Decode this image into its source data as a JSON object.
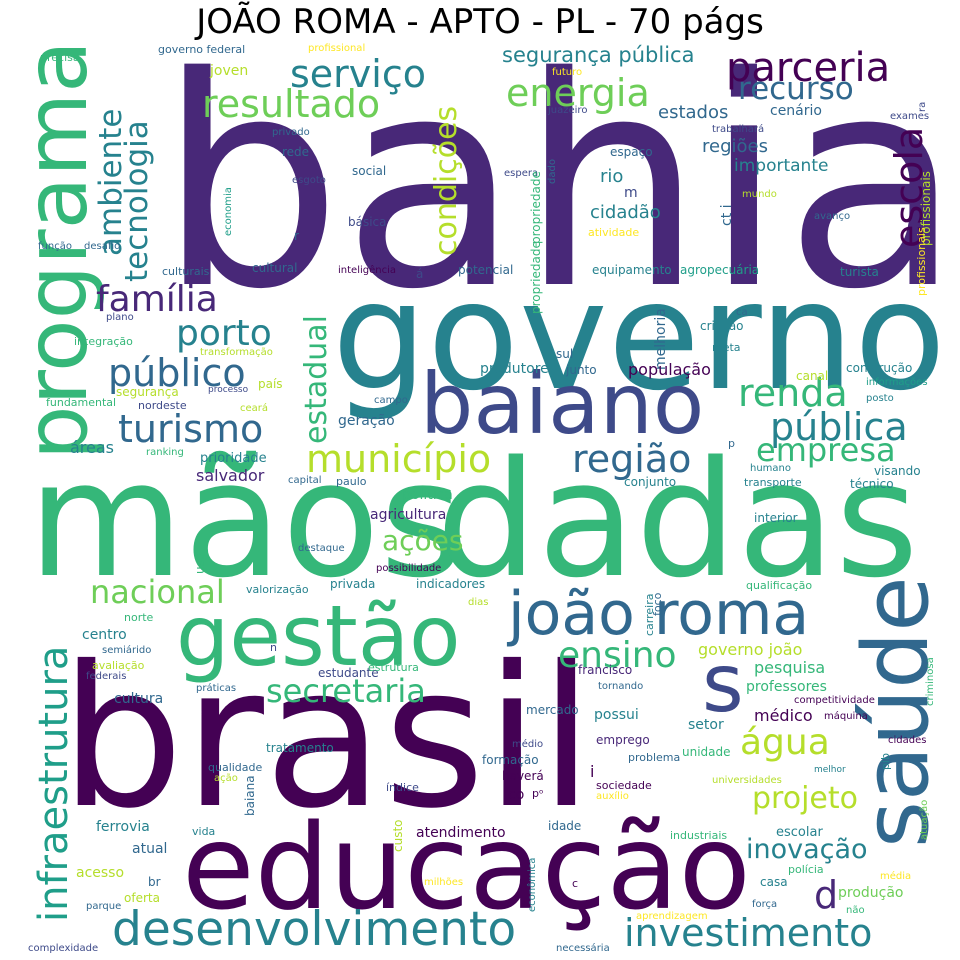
{
  "title": "JOÃO ROMA - APTO - PL - 70 págs",
  "palette": {
    "dark_purple": "#440154",
    "indigo": "#482878",
    "blue": "#3e4a89",
    "slate": "#31688e",
    "teal": "#26828e",
    "sea": "#1f9e89",
    "green": "#35b779",
    "lime": "#6ece58",
    "yellow_green": "#b5de2b",
    "yellow": "#fde725"
  },
  "words": [
    {
      "text": "bahia",
      "color": "#482878"
    },
    {
      "text": "governo",
      "color": "#26828e"
    },
    {
      "text": "mãos",
      "color": "#35b779"
    },
    {
      "text": "dadas",
      "color": "#35b779"
    },
    {
      "text": "brasil",
      "color": "#440154"
    },
    {
      "text": "educação",
      "color": "#440154"
    },
    {
      "text": "programa",
      "color": "#35b779"
    },
    {
      "text": "saúde",
      "color": "#31688e"
    },
    {
      "text": "gestão",
      "color": "#35b779"
    },
    {
      "text": "joão roma",
      "color": "#31688e"
    },
    {
      "text": "baiano",
      "color": "#3e4a89"
    },
    {
      "text": "s",
      "color": "#3e4a89"
    },
    {
      "text": "desenvolvimento",
      "color": "#26828e"
    },
    {
      "text": "infraestrutura",
      "color": "#1f9e89"
    },
    {
      "text": "parceria",
      "color": "#440154"
    },
    {
      "text": "serviço",
      "color": "#26828e"
    },
    {
      "text": "resultado",
      "color": "#6ece58"
    },
    {
      "text": "energia",
      "color": "#6ece58"
    },
    {
      "text": "recurso",
      "color": "#31688e"
    },
    {
      "text": "segurança pública",
      "color": "#26828e"
    },
    {
      "text": "ambiente",
      "color": "#26828e"
    },
    {
      "text": "tecnologia",
      "color": "#26828e"
    },
    {
      "text": "condições",
      "color": "#b5de2b"
    },
    {
      "text": "escola",
      "color": "#440154"
    },
    {
      "text": "família",
      "color": "#482878"
    },
    {
      "text": "porto",
      "color": "#26828e"
    },
    {
      "text": "público",
      "color": "#31688e"
    },
    {
      "text": "turismo",
      "color": "#31688e"
    },
    {
      "text": "estadual",
      "color": "#35b779"
    },
    {
      "text": "município",
      "color": "#b5de2b"
    },
    {
      "text": "região",
      "color": "#31688e"
    },
    {
      "text": "renda",
      "color": "#35b779"
    },
    {
      "text": "pública",
      "color": "#26828e"
    },
    {
      "text": "empresa",
      "color": "#35b779"
    },
    {
      "text": "secretaria",
      "color": "#35b779"
    },
    {
      "text": "nacional",
      "color": "#6ece58"
    },
    {
      "text": "ensino",
      "color": "#35b779"
    },
    {
      "text": "água",
      "color": "#b5de2b"
    },
    {
      "text": "projeto",
      "color": "#b5de2b"
    },
    {
      "text": "inovação",
      "color": "#26828e"
    },
    {
      "text": "investimento",
      "color": "#26828e"
    },
    {
      "text": "d",
      "color": "#482878"
    },
    {
      "text": "ações",
      "color": "#6ece58"
    },
    {
      "text": "estados",
      "color": "#31688e"
    },
    {
      "text": "regiões",
      "color": "#31688e"
    },
    {
      "text": "importante",
      "color": "#26828e"
    },
    {
      "text": "cenário",
      "color": "#31688e"
    },
    {
      "text": "rio",
      "color": "#26828e"
    },
    {
      "text": "m",
      "color": "#3e4a89"
    },
    {
      "text": "cidadão",
      "color": "#26828e"
    },
    {
      "text": "ct i",
      "color": "#31688e"
    },
    {
      "text": "espaço",
      "color": "#31688e"
    },
    {
      "text": "trabalhará",
      "color": "#3e4a89"
    },
    {
      "text": "juazeiro",
      "color": "#3e4a89"
    },
    {
      "text": "futuro",
      "color": "#fde725"
    },
    {
      "text": "exames",
      "color": "#3e4a89"
    },
    {
      "text": "ra",
      "color": "#3e4a89"
    },
    {
      "text": "profissionais",
      "color": "#b5de2b"
    },
    {
      "text": "profissionais",
      "color": "#fde725"
    },
    {
      "text": "mundo",
      "color": "#b5de2b"
    },
    {
      "text": "avanço",
      "color": "#31688e"
    },
    {
      "text": "espera",
      "color": "#3e4a89"
    },
    {
      "text": "dado",
      "color": "#31688e"
    },
    {
      "text": "propriedade",
      "color": "#35b779"
    },
    {
      "text": "atividade",
      "color": "#fde725"
    },
    {
      "text": "propriedade",
      "color": "#35b779"
    },
    {
      "text": "melhoria",
      "color": "#31688e"
    },
    {
      "text": "equipamento",
      "color": "#26828e"
    },
    {
      "text": "agropecuária",
      "color": "#1f9e89"
    },
    {
      "text": "turista",
      "color": "#26828e"
    },
    {
      "text": "ca",
      "color": "#31688e"
    },
    {
      "text": "criação",
      "color": "#26828e"
    },
    {
      "text": "meta",
      "color": "#26828e"
    },
    {
      "text": "construção",
      "color": "#26828e"
    },
    {
      "text": "informações",
      "color": "#1f9e89"
    },
    {
      "text": "posto",
      "color": "#26828e"
    },
    {
      "text": "canal",
      "color": "#b5de2b"
    },
    {
      "text": "população",
      "color": "#440154"
    },
    {
      "text": "produtores",
      "color": "#26828e"
    },
    {
      "text": "junto",
      "color": "#31688e"
    },
    {
      "text": "sul",
      "color": "#31688e"
    },
    {
      "text": "p",
      "color": "#31688e"
    },
    {
      "text": "humano",
      "color": "#26828e"
    },
    {
      "text": "visando",
      "color": "#26828e"
    },
    {
      "text": "transporte",
      "color": "#26828e"
    },
    {
      "text": "técnico",
      "color": "#26828e"
    },
    {
      "text": "conjunto",
      "color": "#26828e"
    },
    {
      "text": "política",
      "color": "#35b779"
    },
    {
      "text": "agricultura",
      "color": "#482878"
    },
    {
      "text": "interior",
      "color": "#26828e"
    },
    {
      "text": "qualificação",
      "color": "#35b779"
    },
    {
      "text": "foco",
      "color": "#31688e"
    },
    {
      "text": "carreira",
      "color": "#26828e"
    },
    {
      "text": "pesquisa",
      "color": "#35b779"
    },
    {
      "text": "professores",
      "color": "#35b779"
    },
    {
      "text": "governo joão",
      "color": "#b5de2b"
    },
    {
      "text": "francisco",
      "color": "#482878"
    },
    {
      "text": "tornando",
      "color": "#31688e"
    },
    {
      "text": "competitividade",
      "color": "#440154"
    },
    {
      "text": "máquina",
      "color": "#440154"
    },
    {
      "text": "criminosa",
      "color": "#35b779"
    },
    {
      "text": "cidades",
      "color": "#440154"
    },
    {
      "text": "médico",
      "color": "#440154"
    },
    {
      "text": "setor",
      "color": "#26828e"
    },
    {
      "text": "unidade",
      "color": "#35b779"
    },
    {
      "text": "pib",
      "color": "#26828e"
    },
    {
      "text": "mercado",
      "color": "#31688e"
    },
    {
      "text": "possui",
      "color": "#26828e"
    },
    {
      "text": "emprego",
      "color": "#482878"
    },
    {
      "text": "médio",
      "color": "#3e4a89"
    },
    {
      "text": "problema",
      "color": "#31688e"
    },
    {
      "text": "formação",
      "color": "#31688e"
    },
    {
      "text": "haverá",
      "color": "#440154"
    },
    {
      "text": "i",
      "color": "#440154"
    },
    {
      "text": "sociedade",
      "color": "#440154"
    },
    {
      "text": "índice",
      "color": "#3e4a89"
    },
    {
      "text": "co",
      "color": "#440154"
    },
    {
      "text": "pᵒ",
      "color": "#440154"
    },
    {
      "text": "auxílio",
      "color": "#fde725"
    },
    {
      "text": "universidades",
      "color": "#b5de2b"
    },
    {
      "text": "melhor",
      "color": "#26828e"
    },
    {
      "text": "atuação",
      "color": "#6ece58"
    },
    {
      "text": "idade",
      "color": "#31688e"
    },
    {
      "text": "custo",
      "color": "#b5de2b"
    },
    {
      "text": "atendimento",
      "color": "#440154"
    },
    {
      "text": "industriais",
      "color": "#35b779"
    },
    {
      "text": "escolar",
      "color": "#26828e"
    },
    {
      "text": "polícia",
      "color": "#35b779"
    },
    {
      "text": "casa",
      "color": "#26828e"
    },
    {
      "text": "média",
      "color": "#fde725"
    },
    {
      "text": "produção",
      "color": "#6ece58"
    },
    {
      "text": "não",
      "color": "#35b779"
    },
    {
      "text": "força",
      "color": "#31688e"
    },
    {
      "text": "aprendizagem",
      "color": "#fde725"
    },
    {
      "text": "necessária",
      "color": "#31688e"
    },
    {
      "text": "c",
      "color": "#440154"
    },
    {
      "text": "econômica",
      "color": "#26828e"
    },
    {
      "text": "milhões",
      "color": "#fde725"
    },
    {
      "text": "br",
      "color": "#31688e"
    },
    {
      "text": "oferta",
      "color": "#b5de2b"
    },
    {
      "text": "acesso",
      "color": "#b5de2b"
    },
    {
      "text": "parque",
      "color": "#31688e"
    },
    {
      "text": "complexidade",
      "color": "#3e4a89"
    },
    {
      "text": "atual",
      "color": "#31688e"
    },
    {
      "text": "ferrovia",
      "color": "#26828e"
    },
    {
      "text": "vida",
      "color": "#26828e"
    },
    {
      "text": "baiana",
      "color": "#31688e"
    },
    {
      "text": "qualidade",
      "color": "#31688e"
    },
    {
      "text": "ação",
      "color": "#b5de2b"
    },
    {
      "text": "tratamento",
      "color": "#26828e"
    },
    {
      "text": "práticas",
      "color": "#31688e"
    },
    {
      "text": "federais",
      "color": "#3e4a89"
    },
    {
      "text": "avaliação",
      "color": "#b5de2b"
    },
    {
      "text": "semiárido",
      "color": "#31688e"
    },
    {
      "text": "cultura",
      "color": "#31688e"
    },
    {
      "text": "estudante",
      "color": "#3e4a89"
    },
    {
      "text": "estrutura",
      "color": "#35b779"
    },
    {
      "text": "n",
      "color": "#3e4a89"
    },
    {
      "text": "norte",
      "color": "#35b779"
    },
    {
      "text": "centro",
      "color": "#26828e"
    },
    {
      "text": "dias",
      "color": "#b5de2b"
    },
    {
      "text": "indicadores",
      "color": "#26828e"
    },
    {
      "text": "privada",
      "color": "#26828e"
    },
    {
      "text": "valorização",
      "color": "#26828e"
    },
    {
      "text": "possibilidade",
      "color": "#440154"
    },
    {
      "text": "destaque",
      "color": "#31688e"
    },
    {
      "text": "uso",
      "color": "#35b779"
    },
    {
      "text": "áreas",
      "color": "#26828e"
    },
    {
      "text": "prioridade",
      "color": "#26828e"
    },
    {
      "text": "salvador",
      "color": "#482878"
    },
    {
      "text": "capital",
      "color": "#31688e"
    },
    {
      "text": "paulo",
      "color": "#31688e"
    },
    {
      "text": "ranking",
      "color": "#35b779"
    },
    {
      "text": "geração",
      "color": "#31688e"
    },
    {
      "text": "campo",
      "color": "#31688e"
    },
    {
      "text": "nordeste",
      "color": "#3e4a89"
    },
    {
      "text": "ceará",
      "color": "#b5de2b"
    },
    {
      "text": "segurança",
      "color": "#b5de2b"
    },
    {
      "text": "processo",
      "color": "#3e4a89"
    },
    {
      "text": "fundamental",
      "color": "#35b779"
    },
    {
      "text": "país",
      "color": "#b5de2b"
    },
    {
      "text": "transformação",
      "color": "#b5de2b"
    },
    {
      "text": "integração",
      "color": "#35b779"
    },
    {
      "text": "plano",
      "color": "#3e4a89"
    },
    {
      "text": "função",
      "color": "#31688e"
    },
    {
      "text": "desafio",
      "color": "#31688e"
    },
    {
      "text": "economia",
      "color": "#1f9e89"
    },
    {
      "text": "culturais",
      "color": "#31688e"
    },
    {
      "text": "cultural",
      "color": "#31688e"
    },
    {
      "text": "inteligência",
      "color": "#440154"
    },
    {
      "text": "á",
      "color": "#3e4a89"
    },
    {
      "text": "potencial",
      "color": "#31688e"
    },
    {
      "text": "r",
      "color": "#31688e"
    },
    {
      "text": "básica",
      "color": "#3e4a89"
    },
    {
      "text": "esgoto",
      "color": "#3e4a89"
    },
    {
      "text": "social",
      "color": "#31688e"
    },
    {
      "text": "rede",
      "color": "#31688e"
    },
    {
      "text": "privado",
      "color": "#31688e"
    },
    {
      "text": "joven",
      "color": "#b5de2b"
    },
    {
      "text": "governo federal",
      "color": "#31688e"
    },
    {
      "text": "profissional",
      "color": "#fde725"
    },
    {
      "text": "precisa",
      "color": "#35b779"
    }
  ]
}
